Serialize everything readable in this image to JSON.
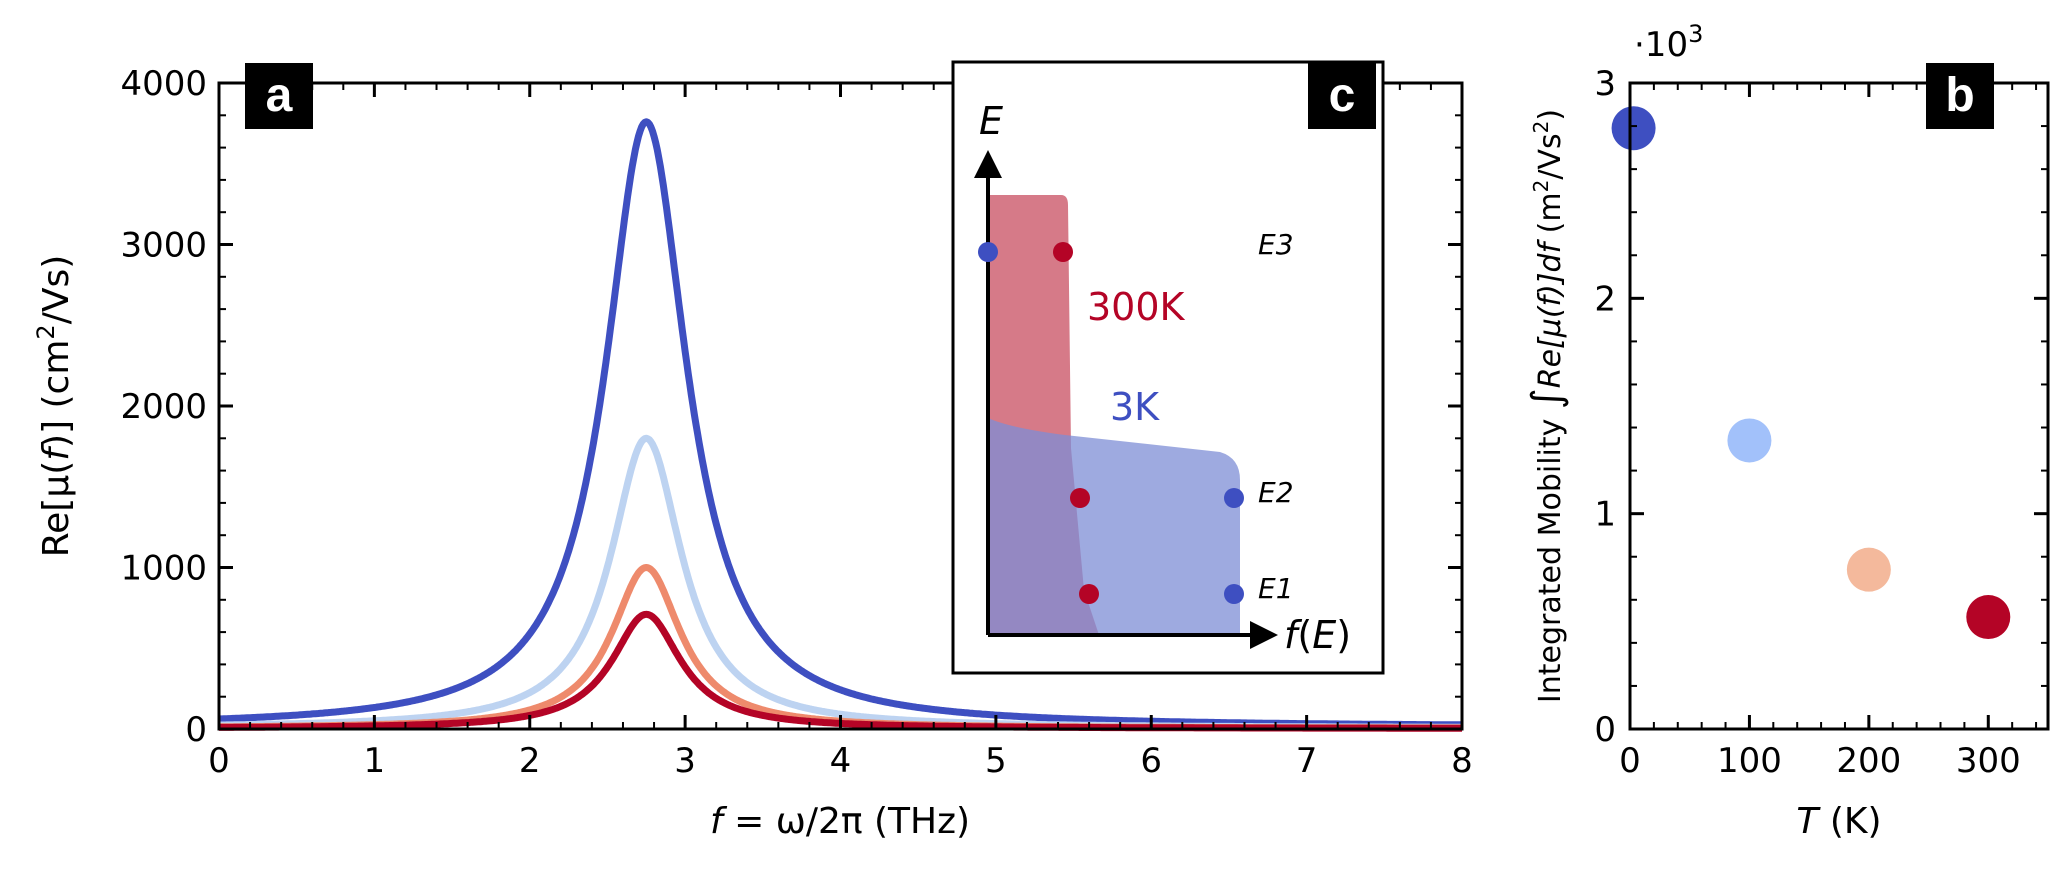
{
  "chart_data": [
    {
      "panel": "a",
      "type": "line",
      "xlabel_parts": [
        "f",
        " = ω/2π",
        " (THz)"
      ],
      "ylabel_parts": [
        "Re[μ(",
        "f",
        ")] (cm",
        "2",
        "/Vs)"
      ],
      "xlim": [
        0,
        8
      ],
      "ylim": [
        0,
        4000
      ],
      "xticks": [
        0,
        1,
        2,
        3,
        4,
        5,
        6,
        7,
        8
      ],
      "yticks": [
        0,
        1000,
        2000,
        3000,
        4000
      ],
      "xtick_labels": [
        "0",
        "1",
        "2",
        "3",
        "4",
        "5",
        "6",
        "7",
        "8"
      ],
      "ytick_labels": [
        "0",
        "1000",
        "2000",
        "3000",
        "4000"
      ],
      "series": [
        {
          "color": "#3e4fc1",
          "center": 2.75,
          "peak": 3760,
          "width": 0.32,
          "baseline": 12
        },
        {
          "color": "#bdd3f1",
          "center": 2.75,
          "peak": 1800,
          "width": 0.28,
          "baseline": 6
        },
        {
          "color": "#ee8a6c",
          "center": 2.75,
          "peak": 1000,
          "width": 0.27,
          "baseline": 4
        },
        {
          "color": "#b40426",
          "center": 2.75,
          "peak": 710,
          "width": 0.27,
          "baseline": 3
        }
      ]
    },
    {
      "panel": "b",
      "type": "scatter",
      "xlabel_parts": [
        "T",
        " (K)"
      ],
      "ylabel_parts": [
        "Integrated Mobility ",
        "∫",
        "Re[μ(",
        "f",
        ")]",
        "df",
        " (m",
        "2",
        "/Vs",
        "2",
        ")"
      ],
      "multiplier_label": "·10",
      "multiplier_exp": "3",
      "xlim": [
        0,
        350
      ],
      "ylim": [
        0,
        3
      ],
      "xticks": [
        0,
        100,
        200,
        300
      ],
      "yticks": [
        0,
        1,
        2,
        3
      ],
      "xtick_labels": [
        "0",
        "100",
        "200",
        "300"
      ],
      "ytick_labels": [
        "0",
        "1",
        "2",
        "3"
      ],
      "points": [
        {
          "x": 3,
          "y": 2.79,
          "color": "#3e4fc1"
        },
        {
          "x": 100,
          "y": 1.34,
          "color": "#a2c1fa"
        },
        {
          "x": 200,
          "y": 0.74,
          "color": "#f4b99c"
        },
        {
          "x": 300,
          "y": 0.52,
          "color": "#b40426"
        }
      ]
    },
    {
      "panel": "c",
      "type": "diagram",
      "y_axis_label": "E",
      "x_axis_label_parts": [
        "f",
        "(",
        "E",
        ")"
      ],
      "label_300K": "300K",
      "label_3K": "3K",
      "color_300K": "#b40426",
      "color_3K": "#3e4fc1",
      "energy_labels": [
        "E3",
        "E2",
        "E1"
      ]
    }
  ],
  "panel_tags": {
    "a": "a",
    "b": "b",
    "c": "c"
  }
}
